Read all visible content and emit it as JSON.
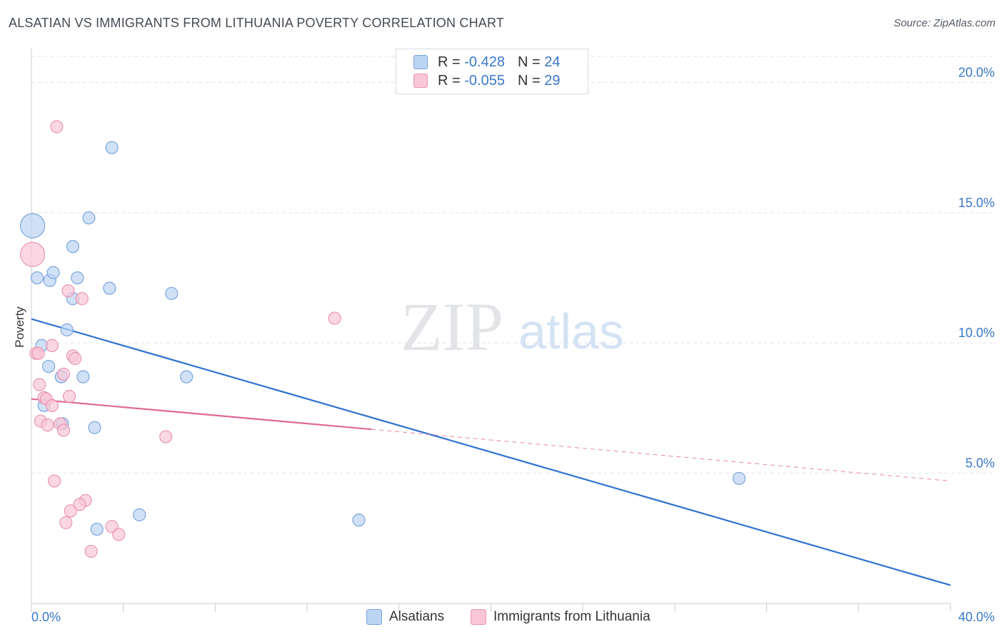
{
  "title": "ALSATIAN VS IMMIGRANTS FROM LITHUANIA POVERTY CORRELATION CHART",
  "source": "Source: ZipAtlas.com",
  "watermark": {
    "zip": "ZIP",
    "atlas": "atlas"
  },
  "legend_top": [
    {
      "r_label": "R =",
      "r_value": "-0.428",
      "n_label": "N =",
      "n_value": "24"
    },
    {
      "r_label": "R =",
      "r_value": "-0.055",
      "n_label": "N =",
      "n_value": "29"
    }
  ],
  "legend_bottom": [
    {
      "label": "Alsatians"
    },
    {
      "label": "Immigrants from Lithuania"
    }
  ],
  "colors": {
    "blue_fill": "#bcd4f3",
    "blue_stroke": "#7aa5da",
    "blue_line": "#2f72d0",
    "pink_fill": "#f8c6d6",
    "pink_stroke": "#e996b2",
    "pink_line": "#e06898",
    "tick_label": "#3a78c9",
    "grid": "#e2e5ea"
  },
  "chart_data": {
    "type": "scatter",
    "title": "ALSATIAN VS IMMIGRANTS FROM LITHUANIA POVERTY CORRELATION CHART",
    "xlabel": "",
    "ylabel": "Poverty",
    "xlim": [
      0,
      40
    ],
    "ylim": [
      0,
      21
    ],
    "x_tick_labels": [
      "0.0%",
      "40.0%"
    ],
    "y_ticks": [
      5,
      10,
      15,
      20
    ],
    "y_tick_labels": [
      "5.0%",
      "10.0%",
      "15.0%",
      "20.0%"
    ],
    "series": [
      {
        "name": "Alsatians",
        "color": "blue",
        "r": -0.428,
        "n": 24,
        "points": [
          {
            "x": 0.05,
            "y": 14.5,
            "big": true
          },
          {
            "x": 0.25,
            "y": 12.5
          },
          {
            "x": 0.8,
            "y": 12.4
          },
          {
            "x": 0.95,
            "y": 12.7
          },
          {
            "x": 2.0,
            "y": 12.5
          },
          {
            "x": 1.8,
            "y": 11.7
          },
          {
            "x": 3.5,
            "y": 17.5
          },
          {
            "x": 2.5,
            "y": 14.8
          },
          {
            "x": 1.8,
            "y": 13.7
          },
          {
            "x": 3.4,
            "y": 12.1
          },
          {
            "x": 6.1,
            "y": 11.9
          },
          {
            "x": 1.55,
            "y": 10.5
          },
          {
            "x": 0.45,
            "y": 9.9
          },
          {
            "x": 0.75,
            "y": 9.1
          },
          {
            "x": 1.3,
            "y": 8.7
          },
          {
            "x": 2.25,
            "y": 8.7
          },
          {
            "x": 6.75,
            "y": 8.7
          },
          {
            "x": 0.55,
            "y": 7.6
          },
          {
            "x": 1.35,
            "y": 6.9
          },
          {
            "x": 2.75,
            "y": 6.75
          },
          {
            "x": 4.7,
            "y": 3.4
          },
          {
            "x": 2.85,
            "y": 2.85
          },
          {
            "x": 14.25,
            "y": 3.2
          },
          {
            "x": 30.8,
            "y": 4.8
          }
        ],
        "trend": {
          "x": [
            0,
            40
          ],
          "y": [
            10.92,
            0.7
          ],
          "dashed_from": null
        }
      },
      {
        "name": "Immigrants from Lithuania",
        "color": "pink",
        "r": -0.055,
        "n": 29,
        "points": [
          {
            "x": 0.05,
            "y": 13.4,
            "big": true
          },
          {
            "x": 1.1,
            "y": 18.3
          },
          {
            "x": 1.6,
            "y": 12.0
          },
          {
            "x": 2.2,
            "y": 11.7
          },
          {
            "x": 13.2,
            "y": 10.95
          },
          {
            "x": 0.2,
            "y": 9.6
          },
          {
            "x": 0.3,
            "y": 9.6
          },
          {
            "x": 0.9,
            "y": 9.9
          },
          {
            "x": 1.8,
            "y": 9.5
          },
          {
            "x": 1.9,
            "y": 9.4
          },
          {
            "x": 1.4,
            "y": 8.8
          },
          {
            "x": 0.35,
            "y": 8.4
          },
          {
            "x": 0.55,
            "y": 7.9
          },
          {
            "x": 0.65,
            "y": 7.85
          },
          {
            "x": 1.65,
            "y": 7.95
          },
          {
            "x": 0.9,
            "y": 7.6
          },
          {
            "x": 0.4,
            "y": 7.0
          },
          {
            "x": 0.7,
            "y": 6.85
          },
          {
            "x": 1.25,
            "y": 6.9
          },
          {
            "x": 1.4,
            "y": 6.65
          },
          {
            "x": 5.85,
            "y": 6.4
          },
          {
            "x": 1.0,
            "y": 4.7
          },
          {
            "x": 2.35,
            "y": 3.95
          },
          {
            "x": 2.1,
            "y": 3.8
          },
          {
            "x": 1.7,
            "y": 3.55
          },
          {
            "x": 1.5,
            "y": 3.1
          },
          {
            "x": 3.5,
            "y": 2.95
          },
          {
            "x": 3.8,
            "y": 2.65
          },
          {
            "x": 2.6,
            "y": 2.0
          }
        ],
        "trend": {
          "x": [
            0,
            40
          ],
          "y": [
            7.85,
            4.7
          ],
          "dashed_from": 14.8
        }
      }
    ]
  }
}
